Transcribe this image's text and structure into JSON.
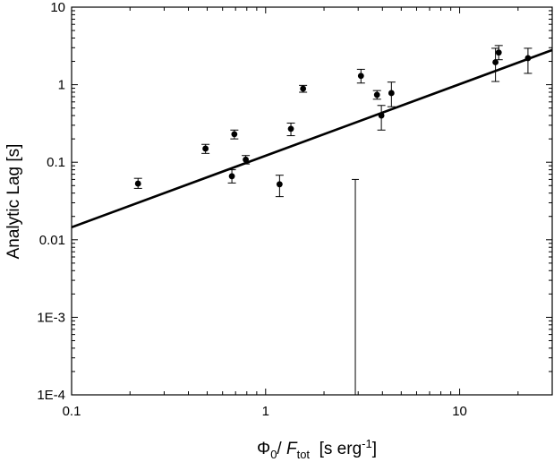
{
  "chart_data": {
    "type": "scatter",
    "title": "",
    "xlabel": {
      "phi": "Φ",
      "phi_sub": "0",
      "slash": "/ ",
      "F": "F",
      "F_sub": "tot",
      "units": "  [s erg",
      "units_sup": "-1",
      "units_close": "]"
    },
    "ylabel": "Analytic Lag [s]",
    "x_scale": "log",
    "y_scale": "log",
    "xlim": [
      0.1,
      30
    ],
    "ylim": [
      0.0001,
      10
    ],
    "x_ticks": [
      {
        "value": 0.1,
        "label": "0.1"
      },
      {
        "value": 1,
        "label": "1"
      },
      {
        "value": 10,
        "label": "10"
      }
    ],
    "y_ticks": [
      {
        "value": 0.0001,
        "label": "1E-4"
      },
      {
        "value": 0.001,
        "label": "1E-3"
      },
      {
        "value": 0.01,
        "label": "0.01"
      },
      {
        "value": 0.1,
        "label": "0.1"
      },
      {
        "value": 1,
        "label": "1"
      },
      {
        "value": 10,
        "label": "10"
      }
    ],
    "grid": false,
    "legend": "none",
    "marker_color": "#000000",
    "series": [
      {
        "points": [
          {
            "x": 0.22,
            "y": 0.053,
            "ylo": 0.046,
            "yhi": 0.062
          },
          {
            "x": 0.49,
            "y": 0.15,
            "ylo": 0.13,
            "yhi": 0.17
          },
          {
            "x": 0.67,
            "y": 0.066,
            "ylo": 0.054,
            "yhi": 0.08
          },
          {
            "x": 0.69,
            "y": 0.23,
            "ylo": 0.2,
            "yhi": 0.26
          },
          {
            "x": 0.79,
            "y": 0.108,
            "ylo": 0.095,
            "yhi": 0.122
          },
          {
            "x": 1.18,
            "y": 0.052,
            "ylo": 0.036,
            "yhi": 0.068
          },
          {
            "x": 1.35,
            "y": 0.27,
            "ylo": 0.22,
            "yhi": 0.32
          },
          {
            "x": 1.56,
            "y": 0.89,
            "ylo": 0.8,
            "yhi": 0.98
          },
          {
            "x": 3.1,
            "y": 1.3,
            "ylo": 1.05,
            "yhi": 1.58
          },
          {
            "x": 3.75,
            "y": 0.74,
            "ylo": 0.65,
            "yhi": 0.84
          },
          {
            "x": 3.95,
            "y": 0.4,
            "ylo": 0.26,
            "yhi": 0.54
          },
          {
            "x": 4.45,
            "y": 0.78,
            "ylo": 0.52,
            "yhi": 1.08
          },
          {
            "x": 15.3,
            "y": 1.95,
            "ylo": 1.1,
            "yhi": 2.95
          },
          {
            "x": 15.9,
            "y": 2.6,
            "ylo": 2.1,
            "yhi": 3.2
          },
          {
            "x": 22.5,
            "y": 2.2,
            "ylo": 1.4,
            "yhi": 2.95
          }
        ]
      }
    ],
    "fit_line": {
      "x": [
        0.1,
        30
      ],
      "y": [
        0.0145,
        2.8
      ]
    },
    "vertical_line": {
      "x": 2.9,
      "y_top": 0.06,
      "y_bottom": 0.0001
    }
  }
}
